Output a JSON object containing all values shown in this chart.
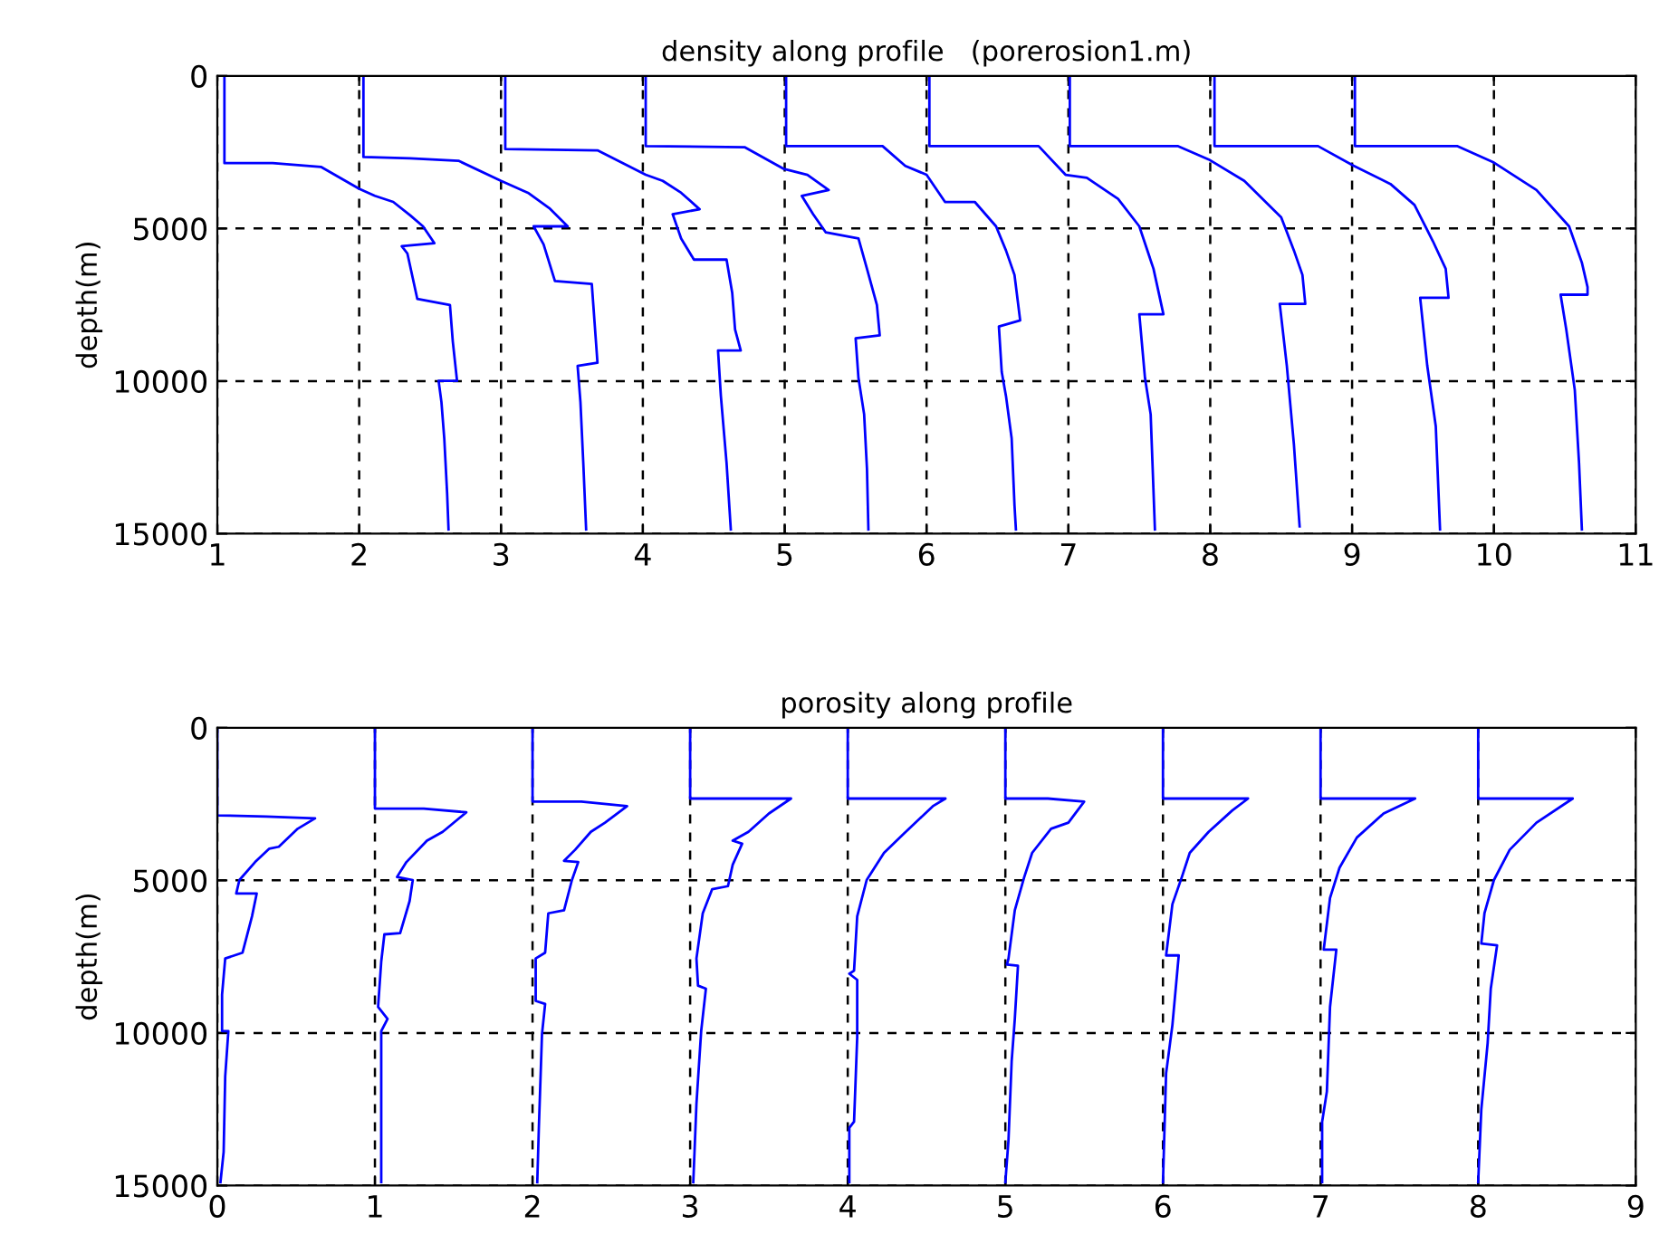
{
  "chart_data": [
    {
      "type": "line",
      "title": "density along profile   (porerosion1.m)",
      "ylabel": "depth(m)",
      "xlim": [
        1,
        11
      ],
      "xticks": [
        1,
        2,
        3,
        4,
        5,
        6,
        7,
        8,
        9,
        10,
        11
      ],
      "ylim": [
        15000,
        0
      ],
      "yticks": [
        0,
        5000,
        10000,
        15000
      ],
      "grid": true,
      "series": [
        {
          "color": "#0000ff",
          "x": [
            1.05,
            1.05,
            1.39,
            1.73,
            2.0,
            2.11,
            2.24,
            2.36,
            2.45,
            2.53,
            2.3,
            2.34,
            2.41,
            2.64,
            2.66,
            2.69,
            2.56,
            2.58,
            2.6,
            2.62,
            2.63
          ],
          "values": [
            0,
            2860,
            2860,
            2980,
            3700,
            3930,
            4130,
            4570,
            4930,
            5480,
            5580,
            5820,
            7310,
            7510,
            8700,
            9990,
            9990,
            10690,
            11880,
            13670,
            14860
          ]
        },
        {
          "color": "#0000ff",
          "x": [
            2.03,
            2.03,
            2.36,
            2.7,
            3.0,
            3.19,
            3.34,
            3.47,
            3.23,
            3.3,
            3.38,
            3.64,
            3.66,
            3.68,
            3.54,
            3.56,
            3.58,
            3.6
          ],
          "values": [
            0,
            2660,
            2700,
            2780,
            3440,
            3830,
            4330,
            4930,
            4930,
            5520,
            6720,
            6820,
            8110,
            9400,
            9500,
            10690,
            12680,
            14860
          ]
        },
        {
          "color": "#0000ff",
          "x": [
            3.03,
            3.03,
            3.68,
            4.02,
            4.14,
            4.27,
            4.4,
            4.21,
            4.27,
            4.36,
            4.59,
            4.63,
            4.65,
            4.69,
            4.53,
            4.55,
            4.59,
            4.62
          ],
          "values": [
            0,
            2400,
            2440,
            3240,
            3440,
            3830,
            4370,
            4530,
            5330,
            6020,
            6020,
            7110,
            8310,
            9000,
            9000,
            10490,
            12680,
            14860
          ]
        },
        {
          "color": "#0000ff",
          "x": [
            4.02,
            4.02,
            4.72,
            4.99,
            5.16,
            5.31,
            5.12,
            5.2,
            5.29,
            5.52,
            5.58,
            5.65,
            5.67,
            5.5,
            5.52,
            5.56,
            5.58,
            5.59
          ],
          "values": [
            0,
            2300,
            2340,
            3040,
            3240,
            3740,
            3930,
            4530,
            5130,
            5330,
            6320,
            7510,
            8500,
            8600,
            9900,
            11090,
            12880,
            14860
          ]
        },
        {
          "color": "#0000ff",
          "x": [
            5.01,
            5.01,
            5.69,
            5.85,
            6.0,
            6.13,
            6.34,
            6.49,
            6.56,
            6.62,
            6.66,
            6.51,
            6.53,
            6.56,
            6.6,
            6.62,
            6.63
          ],
          "values": [
            0,
            2300,
            2300,
            2950,
            3240,
            4130,
            4130,
            4930,
            5720,
            6520,
            8010,
            8210,
            9700,
            10490,
            11880,
            14070,
            14860
          ]
        },
        {
          "color": "#0000ff",
          "x": [
            6.02,
            6.02,
            6.79,
            6.98,
            7.13,
            7.35,
            7.5,
            7.6,
            7.67,
            7.5,
            7.54,
            7.58,
            7.61
          ],
          "values": [
            0,
            2300,
            2300,
            3240,
            3340,
            4030,
            4930,
            6320,
            7810,
            7810,
            9900,
            11090,
            14860
          ]
        },
        {
          "color": "#0000ff",
          "x": [
            7.01,
            7.01,
            7.77,
            7.99,
            8.24,
            8.5,
            8.59,
            8.65,
            8.67,
            8.49,
            8.54,
            8.59,
            8.63
          ],
          "values": [
            0,
            2300,
            2300,
            2740,
            3440,
            4630,
            5720,
            6520,
            7470,
            7470,
            9500,
            12080,
            14760
          ]
        },
        {
          "color": "#0000ff",
          "x": [
            8.03,
            8.03,
            8.76,
            9.01,
            9.27,
            9.44,
            9.57,
            9.66,
            9.68,
            9.48,
            9.53,
            9.59,
            9.62
          ],
          "values": [
            0,
            2300,
            2300,
            2940,
            3540,
            4230,
            5420,
            6320,
            7270,
            7270,
            9500,
            11480,
            14860
          ]
        },
        {
          "color": "#0000ff",
          "x": [
            9.02,
            9.02,
            9.74,
            10.0,
            10.3,
            10.53,
            10.62,
            10.66,
            10.66,
            10.47,
            10.51,
            10.57,
            10.6,
            10.62
          ],
          "values": [
            0,
            2300,
            2300,
            2840,
            3740,
            4930,
            6120,
            6920,
            7170,
            7170,
            8310,
            10290,
            12680,
            14860
          ]
        }
      ]
    },
    {
      "type": "line",
      "title": "porosity along profile",
      "ylabel": "depth(m)",
      "xlim": [
        0,
        9
      ],
      "xticks": [
        0,
        1,
        2,
        3,
        4,
        5,
        6,
        7,
        8,
        9
      ],
      "ylim": [
        15000,
        0
      ],
      "yticks": [
        0,
        5000,
        10000,
        15000
      ],
      "grid": true,
      "series": [
        {
          "color": "#0000ff",
          "x": [
            0,
            0,
            0.31,
            0.62,
            0.51,
            0.39,
            0.33,
            0.24,
            0.14,
            0.12,
            0.25,
            0.22,
            0.16,
            0.05,
            0.03,
            0.03,
            0.07,
            0.05,
            0.04,
            0.02
          ],
          "values": [
            0,
            2870,
            2910,
            2970,
            3310,
            3900,
            3960,
            4400,
            4990,
            5430,
            5430,
            6180,
            7370,
            7560,
            8750,
            9940,
            9940,
            11420,
            13900,
            14890
          ]
        },
        {
          "color": "#0000ff",
          "x": [
            1.0,
            1.0,
            1.31,
            1.58,
            1.43,
            1.33,
            1.2,
            1.14,
            1.24,
            1.22,
            1.16,
            1.06,
            1.04,
            1.02,
            1.08,
            1.04,
            1.04,
            1.04
          ],
          "values": [
            0,
            2650,
            2650,
            2770,
            3410,
            3700,
            4400,
            4890,
            4990,
            5680,
            6730,
            6770,
            7660,
            9150,
            9540,
            9940,
            11520,
            14890
          ]
        },
        {
          "color": "#0000ff",
          "x": [
            2.0,
            2.0,
            2.31,
            2.6,
            2.46,
            2.37,
            2.27,
            2.2,
            2.29,
            2.25,
            2.2,
            2.1,
            2.08,
            2.02,
            2.02,
            2.08,
            2.06,
            2.04,
            2.03
          ],
          "values": [
            0,
            2420,
            2420,
            2570,
            3110,
            3410,
            4000,
            4360,
            4400,
            4990,
            5980,
            6080,
            7370,
            7560,
            8950,
            9050,
            10040,
            13110,
            14890
          ]
        },
        {
          "color": "#0000ff",
          "x": [
            3.0,
            3.0,
            3.64,
            3.5,
            3.37,
            3.27,
            3.33,
            3.27,
            3.24,
            3.14,
            3.08,
            3.04,
            3.05,
            3.1,
            3.07,
            3.04,
            3.02
          ],
          "values": [
            0,
            2320,
            2320,
            2810,
            3410,
            3700,
            3800,
            4490,
            5190,
            5290,
            6080,
            7560,
            8450,
            8550,
            9940,
            12320,
            14890
          ]
        },
        {
          "color": "#0000ff",
          "x": [
            4.0,
            4.0,
            4.62,
            4.54,
            4.35,
            4.23,
            4.12,
            4.06,
            4.04,
            4.01,
            4.06,
            4.06,
            4.04,
            4.01,
            4.01
          ],
          "values": [
            0,
            2320,
            2320,
            2570,
            3500,
            4100,
            4990,
            6180,
            7960,
            8060,
            8260,
            10140,
            12910,
            13110,
            14890
          ]
        },
        {
          "color": "#0000ff",
          "x": [
            5.0,
            5.0,
            5.27,
            5.5,
            5.4,
            5.29,
            5.17,
            5.12,
            5.06,
            5.02,
            5.01,
            5.08,
            5.06,
            5.04,
            5.02,
            5.0
          ],
          "values": [
            0,
            2320,
            2320,
            2420,
            3110,
            3310,
            4100,
            4890,
            5980,
            7560,
            7760,
            7800,
            9540,
            10930,
            13500,
            14890
          ]
        },
        {
          "color": "#0000ff",
          "x": [
            6.0,
            6.0,
            6.54,
            6.44,
            6.29,
            6.17,
            6.12,
            6.06,
            6.02,
            6.1,
            6.06,
            6.02,
            6.0
          ],
          "values": [
            0,
            2320,
            2320,
            2710,
            3410,
            4100,
            4890,
            5780,
            7460,
            7460,
            9740,
            11320,
            14890
          ]
        },
        {
          "color": "#0000ff",
          "x": [
            7.0,
            7.0,
            7.6,
            7.4,
            7.23,
            7.12,
            7.06,
            7.02,
            7.1,
            7.06,
            7.04,
            7.01,
            7.01
          ],
          "values": [
            0,
            2320,
            2320,
            2810,
            3600,
            4590,
            5580,
            7270,
            7270,
            9150,
            11920,
            12910,
            14890
          ]
        },
        {
          "color": "#0000ff",
          "x": [
            8.0,
            8.0,
            8.6,
            8.37,
            8.2,
            8.1,
            8.04,
            8.02,
            8.12,
            8.08,
            8.06,
            8.02,
            8.0
          ],
          "values": [
            0,
            2320,
            2320,
            3110,
            4000,
            4990,
            6080,
            7070,
            7130,
            8550,
            10340,
            12510,
            14890
          ]
        }
      ]
    }
  ]
}
